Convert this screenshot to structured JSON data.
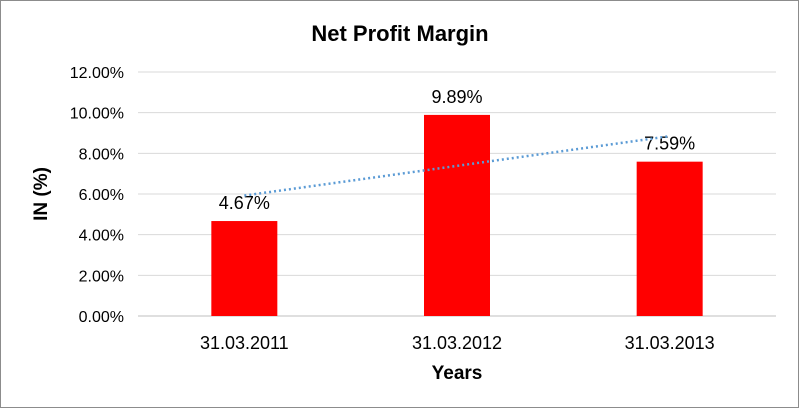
{
  "chart_data": {
    "type": "bar",
    "title": "Net Profit Margin",
    "xlabel": "Years",
    "ylabel": "IN (%)",
    "categories": [
      "31.03.2011",
      "31.03.2012",
      "31.03.2013"
    ],
    "values": [
      4.67,
      9.89,
      7.59
    ],
    "data_labels": [
      "4.67%",
      "9.89%",
      "7.59%"
    ],
    "ylim": [
      0,
      12
    ],
    "yticks": [
      0,
      2,
      4,
      6,
      8,
      10,
      12
    ],
    "ytick_labels": [
      "0.00%",
      "2.00%",
      "4.00%",
      "6.00%",
      "8.00%",
      "10.00%",
      "12.00%"
    ],
    "grid": true,
    "legend": "none",
    "bar_color": "#ff0000",
    "trendline": {
      "type": "linear",
      "style": "dotted",
      "color": "#5b9bd5"
    }
  }
}
